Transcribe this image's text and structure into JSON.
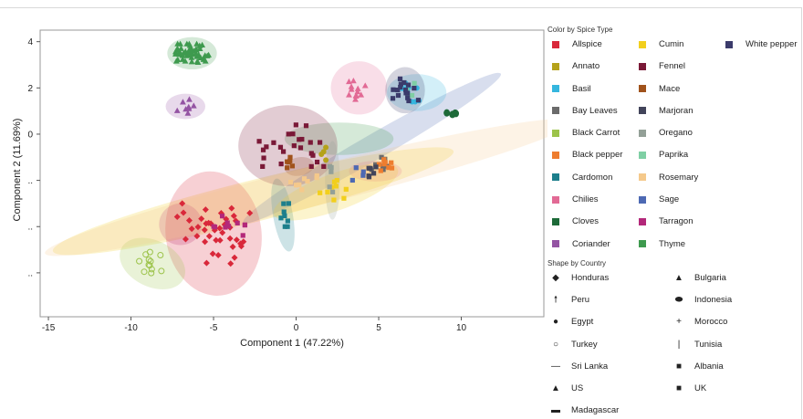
{
  "chart_data": {
    "type": "scatter",
    "xlabel": "Component 1 (47.22%)",
    "ylabel": "Component 2 (11.69%)",
    "xlim": [
      -15.5,
      15
    ],
    "ylim": [
      -7.9,
      4.5
    ],
    "x_ticks": [
      {
        "value": -15,
        "label": "-15"
      },
      {
        "value": -10,
        "label": "-10"
      },
      {
        "value": -5,
        "label": "-5"
      },
      {
        "value": 0,
        "label": "0"
      },
      {
        "value": 5,
        "label": "5"
      },
      {
        "value": 10,
        "label": "10"
      }
    ],
    "y_ticks": [
      {
        "value": 4,
        "label": "4"
      },
      {
        "value": 2,
        "label": "2"
      },
      {
        "value": 0,
        "label": "0"
      },
      {
        "value": -2,
        "label": ".."
      },
      {
        "value": -4,
        "label": ".."
      },
      {
        "value": -6,
        "label": ".."
      }
    ],
    "grid": false,
    "legend_position": "right",
    "color_legend_title": "Color by Spice Type",
    "shape_legend_title": "Shape by Country",
    "series": [
      {
        "name": "Allspice",
        "color": "#d9283a",
        "shape": "diamond",
        "center": [
          -5,
          -4.3
        ],
        "spread": [
          2.2,
          1.3
        ],
        "n": 40,
        "ellipse": {
          "rx": 2.9,
          "ry": 2.7,
          "rot": -8
        }
      },
      {
        "name": "Annato",
        "color": "#b5a21a",
        "shape": "circle",
        "center": [
          1.6,
          -0.8
        ],
        "spread": [
          0.2,
          0.5
        ],
        "n": 4
      },
      {
        "name": "Basil",
        "color": "#35b6de",
        "shape": "circle",
        "center": [
          7.3,
          1.8
        ],
        "spread": [
          0.9,
          0.4
        ],
        "n": 10,
        "ellipse": {
          "rx": 1.8,
          "ry": 0.8,
          "rot": 0
        }
      },
      {
        "name": "Bay Leaves",
        "color": "#6b6b6b",
        "shape": "square",
        "center": [
          5,
          -1.3
        ],
        "spread": [
          0.6,
          0.3
        ],
        "n": 7
      },
      {
        "name": "Black Carrot",
        "color": "#9cc34a",
        "shape": "open-circle",
        "center": [
          -8.7,
          -5.6
        ],
        "spread": [
          0.8,
          0.5
        ],
        "n": 12,
        "ellipse": {
          "rx": 2.1,
          "ry": 1.0,
          "rot": 26
        }
      },
      {
        "name": "Black pepper",
        "color": "#ee7d2f",
        "shape": "square",
        "center": [
          5.2,
          -1.4
        ],
        "spread": [
          0.6,
          0.3
        ],
        "n": 8
      },
      {
        "name": "Cardomon",
        "color": "#1d7f8c",
        "shape": "square",
        "center": [
          -0.8,
          -3.5
        ],
        "spread": [
          0.35,
          0.5
        ],
        "n": 8,
        "ellipse": {
          "rx": 0.6,
          "ry": 1.6,
          "rot": -10
        }
      },
      {
        "name": "Chilies",
        "color": "#e26a95",
        "shape": "triangle",
        "center": [
          3.8,
          2.0
        ],
        "spread": [
          0.6,
          0.5
        ],
        "n": 12,
        "ellipse": {
          "rx": 1.7,
          "ry": 1.15,
          "rot": 0
        }
      },
      {
        "name": "Cloves",
        "color": "#1d6a38",
        "shape": "ellipse",
        "center": [
          9.5,
          0.9
        ],
        "spread": [
          0.4,
          0.05
        ],
        "n": 4
      },
      {
        "name": "Coriander",
        "color": "#9454a3",
        "shape": "triangle",
        "center": [
          -6.7,
          1.2
        ],
        "spread": [
          0.5,
          0.3
        ],
        "n": 8,
        "ellipse": {
          "rx": 1.2,
          "ry": 0.55,
          "rot": 0
        }
      },
      {
        "name": "Cumin",
        "color": "#f2cf1d",
        "shape": "square",
        "center": [
          2.4,
          -2.5
        ],
        "spread": [
          1.3,
          0.5
        ],
        "n": 9,
        "ellipse": {
          "rx": 4.0,
          "ry": 0.8,
          "rot": -20
        }
      },
      {
        "name": "Fennel",
        "color": "#7a1937",
        "shape": "square",
        "center": [
          -0.5,
          -0.5
        ],
        "spread": [
          2.3,
          0.9
        ],
        "n": 24,
        "ellipse": {
          "rx": 3.0,
          "ry": 1.75,
          "rot": 0
        }
      },
      {
        "name": "Mace",
        "color": "#a0521b",
        "shape": "square",
        "center": [
          -0.3,
          -1.3
        ],
        "spread": [
          0.4,
          0.3
        ],
        "n": 6
      },
      {
        "name": "Marjoran",
        "color": "#42445a",
        "shape": "square",
        "center": [
          5,
          -1.7
        ],
        "spread": [
          0.6,
          0.3
        ],
        "n": 6
      },
      {
        "name": "Oregano",
        "color": "#93a097",
        "shape": "square",
        "center": [
          2.2,
          -2.0
        ],
        "spread": [
          0.2,
          0.6
        ],
        "n": 5,
        "ellipse": {
          "rx": 0.45,
          "ry": 1.7,
          "rot": 0
        }
      },
      {
        "name": "Paprika",
        "color": "#7fcfa4",
        "shape": "square",
        "center": [
          6.9,
          1.9
        ],
        "spread": [
          0.4,
          0.3
        ],
        "n": 4
      },
      {
        "name": "Rosemary",
        "color": "#f5c98b",
        "shape": "square",
        "center": [
          0.8,
          -2.3
        ],
        "spread": [
          1.4,
          0.5
        ],
        "n": 8,
        "ellipse": {
          "rx": 16.5,
          "ry": 0.85,
          "rot": -14
        }
      },
      {
        "name": "Sage",
        "color": "#4d69b3",
        "shape": "square",
        "center": [
          3.8,
          -1.7
        ],
        "spread": [
          0.4,
          0.3
        ],
        "n": 4
      },
      {
        "name": "Tarragon",
        "color": "#b3287a",
        "shape": "square",
        "center": [
          -4.3,
          -3.9
        ],
        "spread": [
          1.2,
          0.5
        ],
        "n": 10
      },
      {
        "name": "Thyme",
        "color": "#3e9a4e",
        "shape": "triangle",
        "center": [
          -6.3,
          3.5
        ],
        "spread": [
          1.0,
          0.4
        ],
        "n": 50,
        "ellipse": {
          "rx": 1.5,
          "ry": 0.7,
          "rot": 0
        }
      },
      {
        "name": "White pepper",
        "color": "#3b3b6b",
        "shape": "square",
        "center": [
          6.6,
          1.9
        ],
        "spread": [
          0.8,
          0.5
        ],
        "n": 16,
        "ellipse": {
          "rx": 1.2,
          "ry": 1.0,
          "rot": 0
        }
      }
    ],
    "extra_ellipses": [
      {
        "center": [
          -2.6,
          -2.9
        ],
        "rx": 12.5,
        "ry": 0.9,
        "rot": -14,
        "color": "#f2cf1d"
      },
      {
        "center": [
          4.6,
          -0.6
        ],
        "rx": 9.0,
        "ry": 0.55,
        "rot": -30,
        "color": "#4d69b3"
      },
      {
        "center": [
          2.6,
          -0.2
        ],
        "rx": 3.3,
        "ry": 0.7,
        "rot": 0,
        "color": "#3e9a4e"
      },
      {
        "center": [
          4.8,
          -1.6
        ],
        "rx": 1.6,
        "ry": 0.45,
        "rot": 0,
        "color": "#e26a95"
      },
      {
        "center": [
          0.2,
          -1.4
        ],
        "rx": 0.9,
        "ry": 0.4,
        "rot": -10,
        "color": "#a0521b"
      },
      {
        "center": [
          -7.0,
          -3.9
        ],
        "rx": 1.3,
        "ry": 0.9,
        "rot": 0,
        "color": "#b3287a"
      }
    ],
    "shape_legend": [
      {
        "label": "Honduras",
        "glyph": "◆"
      },
      {
        "label": "Bulgaria",
        "glyph": "▲"
      },
      {
        "label": "Peru",
        "glyph": "🠕"
      },
      {
        "label": "Indonesia",
        "glyph": "⬬"
      },
      {
        "label": "Egypt",
        "glyph": "●"
      },
      {
        "label": "Morocco",
        "glyph": "+"
      },
      {
        "label": "Turkey",
        "glyph": "○"
      },
      {
        "label": "Tunisia",
        "glyph": "|"
      },
      {
        "label": "Sri Lanka",
        "glyph": "—"
      },
      {
        "label": "Albania",
        "glyph": "■"
      },
      {
        "label": "US",
        "glyph": "▲"
      },
      {
        "label": "UK",
        "glyph": "■"
      },
      {
        "label": "Madagascar",
        "glyph": "▬"
      }
    ]
  }
}
